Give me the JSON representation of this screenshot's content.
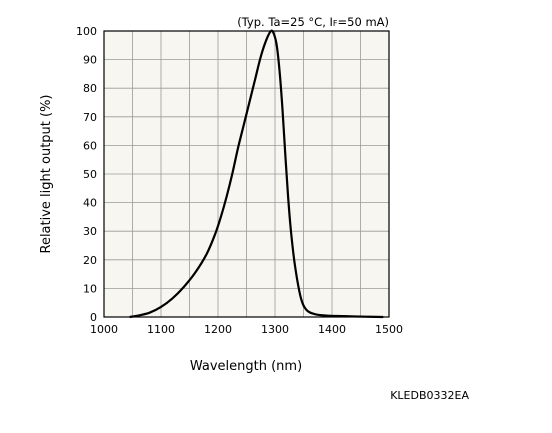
{
  "chart_data": {
    "type": "line",
    "conditions_prefix": "(Typ. Ta=25 °C, I",
    "conditions_sub": "F",
    "conditions_suffix": "=50 mA)",
    "xlabel": "Wavelength (nm)",
    "ylabel": "Relative light output (%)",
    "xlim": [
      1000,
      1500
    ],
    "ylim": [
      0,
      100
    ],
    "x_ticks": [
      "1000",
      "1100",
      "1200",
      "1300",
      "1400",
      "1500"
    ],
    "y_ticks": [
      "0",
      "10",
      "20",
      "30",
      "40",
      "50",
      "60",
      "70",
      "80",
      "90",
      "100"
    ],
    "grid": true,
    "background": "#f7f6f0",
    "line_color": "#000000",
    "series": [
      {
        "x": [
          1045,
          1060,
          1080,
          1100,
          1120,
          1140,
          1160,
          1180,
          1195,
          1205,
          1215,
          1225,
          1235,
          1245,
          1255,
          1265,
          1275,
          1285,
          1293,
          1298,
          1303,
          1308,
          1313,
          1318,
          1323,
          1328,
          1335,
          1345,
          1355,
          1370,
          1390,
          1420,
          1460,
          1490
        ],
        "y": [
          0,
          0.5,
          1.5,
          3.5,
          6.5,
          10.5,
          15.5,
          22,
          29,
          35,
          42,
          50,
          59,
          67,
          75,
          83,
          91,
          97,
          100,
          99,
          95,
          86,
          73,
          57,
          42,
          30,
          18,
          7,
          2.5,
          1,
          0.5,
          0.3,
          0.1,
          0
        ]
      }
    ]
  },
  "figure_code": "KLEDB0332EA"
}
